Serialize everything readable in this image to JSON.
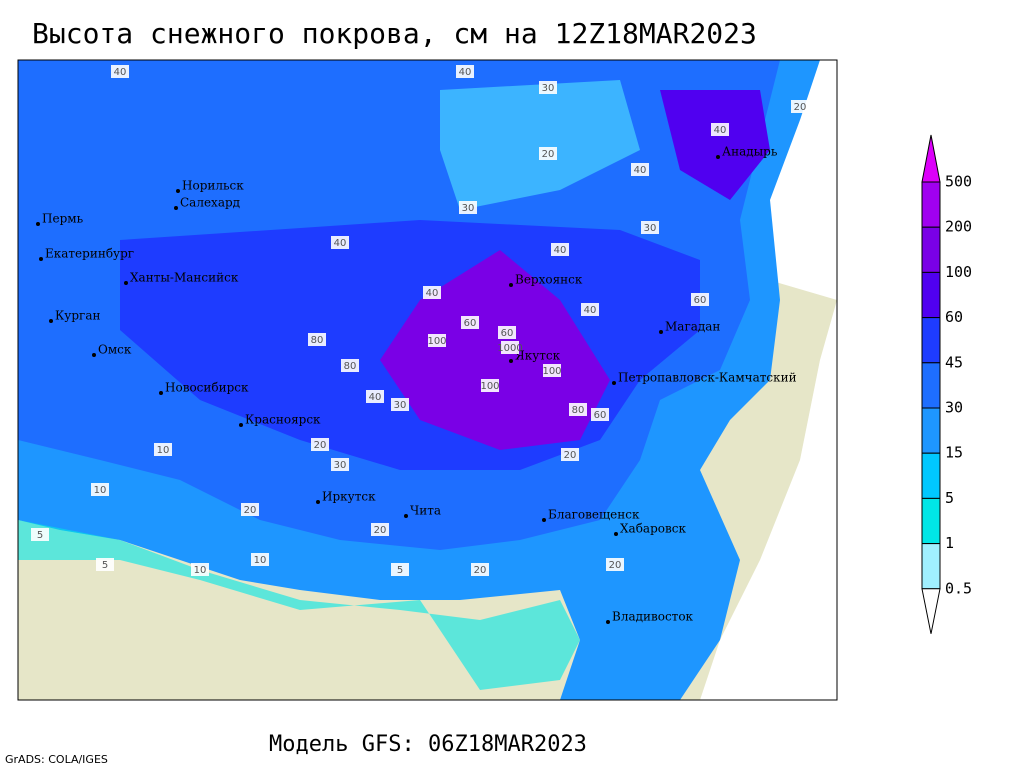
{
  "title": "Высота снежного покрова, см на 12Z18MAR2023",
  "model": "Модель GFS: 06Z18MAR2023",
  "credit": "GrADS: COLA/IGES",
  "legend": {
    "levels": [
      "500",
      "200",
      "100",
      "60",
      "45",
      "30",
      "15",
      "5",
      "1",
      "0.5"
    ],
    "colors": [
      "#dc00fa",
      "#a000f0",
      "#7a00e6",
      "#5000f0",
      "#1e3cff",
      "#1e6eff",
      "#1e96ff",
      "#00c8ff",
      "#00e6e6",
      "#a0f0ff",
      "#ffffff"
    ]
  },
  "cities": [
    "Анадырь",
    "Норильск",
    "Салехард",
    "Пермь",
    "Екатеринбург",
    "Ханты-Мансийск",
    "Верхоянск",
    "Магадан",
    "Курган",
    "Омск",
    "Якутск",
    "Петропавловск-Камчатский",
    "Новосибирск",
    "Красноярск",
    "Иркутск",
    "Чита",
    "Благовещенск",
    "Хабаровск",
    "Владивосток"
  ],
  "contour_labels": [
    "40",
    "30",
    "20",
    "40",
    "20",
    "30",
    "40",
    "60",
    "40",
    "40",
    "40",
    "60",
    "100",
    "1000",
    "100",
    "80",
    "80",
    "100",
    "60",
    "80",
    "40",
    "30",
    "20",
    "10",
    "5",
    "10",
    "20",
    "30",
    "20",
    "10",
    "5",
    "20",
    "40",
    "30",
    "60",
    "40",
    "20",
    "10",
    "5",
    "20"
  ]
}
